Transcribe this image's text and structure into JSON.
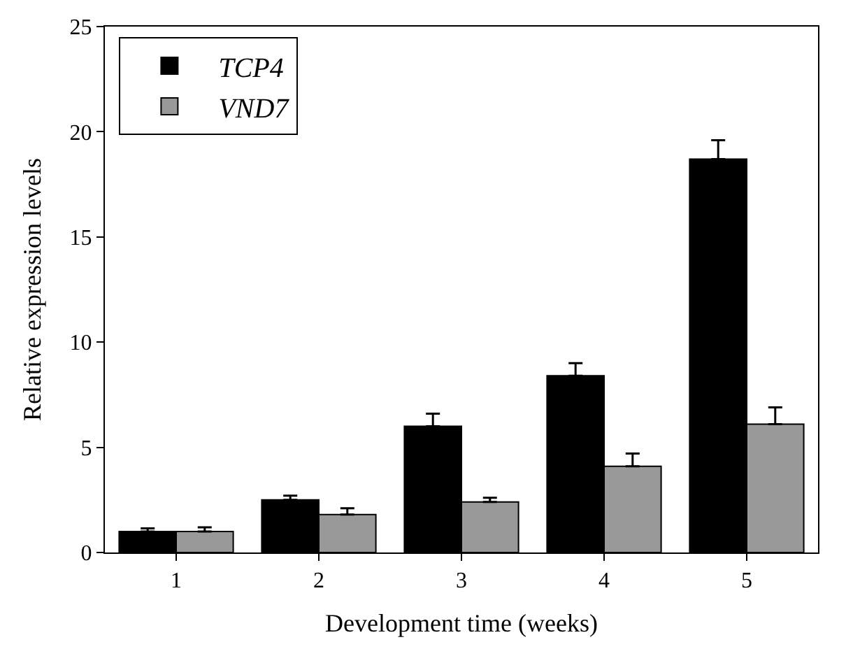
{
  "chart_data": {
    "type": "bar",
    "xlabel": "Development time (weeks)",
    "ylabel": "Relative expression levels",
    "categories": [
      "1",
      "2",
      "3",
      "4",
      "5"
    ],
    "series": [
      {
        "name": "TCP4",
        "color": "#000000",
        "values": [
          1.0,
          2.5,
          6.0,
          8.4,
          18.7
        ],
        "errors": [
          [
            1.0,
            1.15
          ],
          [
            2.5,
            2.7
          ],
          [
            6.0,
            6.6
          ],
          [
            8.4,
            9.0
          ],
          [
            18.7,
            19.6
          ]
        ]
      },
      {
        "name": "VND7",
        "color": "#999999",
        "values": [
          1.0,
          1.8,
          2.4,
          4.1,
          6.1
        ],
        "errors": [
          [
            1.0,
            1.2
          ],
          [
            1.8,
            2.1
          ],
          [
            2.4,
            2.6
          ],
          [
            4.1,
            4.7
          ],
          [
            6.1,
            6.9
          ]
        ]
      }
    ],
    "ylim": [
      0,
      25
    ],
    "yticks": [
      0,
      5,
      10,
      15,
      20,
      25
    ],
    "legend": "top left"
  }
}
